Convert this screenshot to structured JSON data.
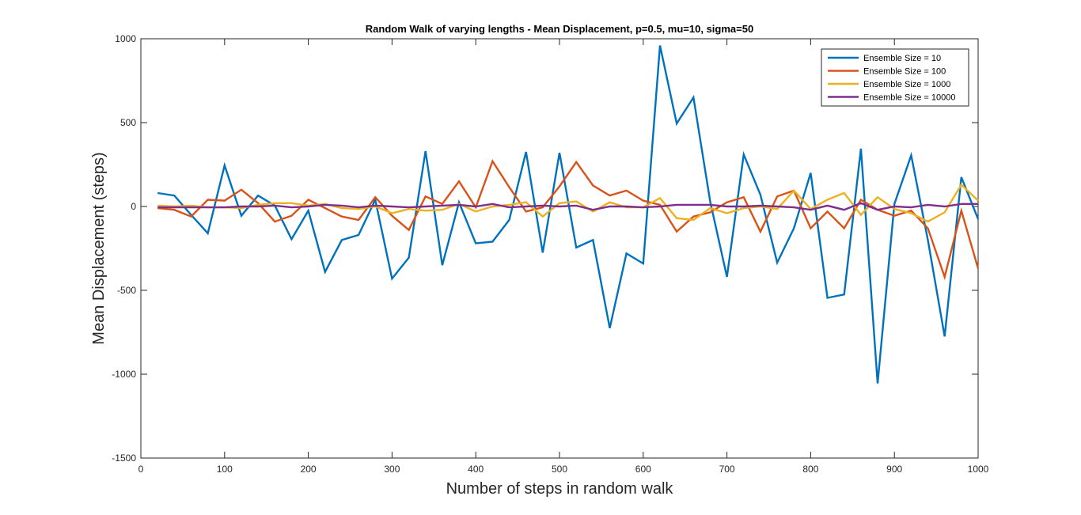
{
  "chart_data": {
    "type": "line",
    "title": "Random Walk of varying lengths - Mean Displacement,  p=0.5, mu=10, sigma=50",
    "xlabel": "Number of steps in random walk",
    "ylabel": "Mean Displacement (steps)",
    "xlim": [
      0,
      1000
    ],
    "ylim": [
      -1500,
      1000
    ],
    "xticks": [
      0,
      100,
      200,
      300,
      400,
      500,
      600,
      700,
      800,
      900,
      1000
    ],
    "yticks": [
      -1500,
      -1000,
      -500,
      0,
      500,
      1000
    ],
    "grid": false,
    "legend_position": "top-right",
    "x": [
      20,
      40,
      60,
      80,
      100,
      120,
      140,
      160,
      180,
      200,
      220,
      240,
      260,
      280,
      300,
      320,
      340,
      360,
      380,
      400,
      420,
      440,
      460,
      480,
      500,
      520,
      540,
      560,
      580,
      600,
      620,
      640,
      660,
      680,
      700,
      720,
      740,
      760,
      780,
      800,
      820,
      840,
      860,
      880,
      900,
      920,
      940,
      960,
      980,
      1000
    ],
    "series": [
      {
        "name": "Ensemble Size = 10",
        "color": "#0072BD",
        "values": [
          80,
          65,
          -50,
          -160,
          245,
          -55,
          65,
          5,
          -195,
          -25,
          -390,
          -200,
          -170,
          40,
          -430,
          -305,
          330,
          -350,
          25,
          -220,
          -210,
          -80,
          325,
          -275,
          320,
          -245,
          -200,
          -725,
          -280,
          -340,
          960,
          495,
          650,
          30,
          -420,
          310,
          70,
          -335,
          -130,
          200,
          -545,
          -525,
          345,
          -1055,
          15,
          305,
          -200,
          -775,
          175,
          -75
        ]
      },
      {
        "name": "Ensemble Size = 100",
        "color": "#D95319",
        "values": [
          -10,
          -20,
          -60,
          40,
          35,
          100,
          20,
          -90,
          -55,
          40,
          -10,
          -60,
          -80,
          55,
          -55,
          -140,
          60,
          15,
          150,
          -5,
          270,
          115,
          -30,
          -5,
          120,
          265,
          125,
          65,
          95,
          35,
          10,
          -150,
          -60,
          -35,
          25,
          55,
          -150,
          60,
          95,
          -130,
          -30,
          -130,
          40,
          -20,
          -55,
          -25,
          -130,
          -420,
          -25,
          -370
        ]
      },
      {
        "name": "Ensemble Size = 1000",
        "color": "#EDB120",
        "values": [
          5,
          0,
          5,
          -5,
          -5,
          -10,
          10,
          20,
          20,
          5,
          15,
          -10,
          -15,
          0,
          -40,
          -15,
          -25,
          -20,
          15,
          -30,
          0,
          10,
          25,
          -60,
          20,
          30,
          -30,
          25,
          -5,
          -5,
          50,
          -70,
          -80,
          -10,
          -40,
          -10,
          0,
          -15,
          95,
          -15,
          40,
          80,
          -50,
          55,
          -15,
          -40,
          -90,
          -35,
          130,
          35
        ]
      },
      {
        "name": "Ensemble Size = 10000",
        "color": "#7E2F8E",
        "values": [
          -5,
          -5,
          -5,
          -5,
          -5,
          0,
          0,
          5,
          -5,
          0,
          10,
          5,
          -5,
          5,
          0,
          -5,
          0,
          5,
          10,
          0,
          15,
          -5,
          0,
          5,
          0,
          5,
          -20,
          0,
          0,
          -5,
          0,
          10,
          10,
          10,
          0,
          0,
          5,
          0,
          -5,
          -20,
          5,
          -20,
          20,
          -20,
          0,
          -5,
          10,
          0,
          15,
          15
        ]
      }
    ]
  }
}
